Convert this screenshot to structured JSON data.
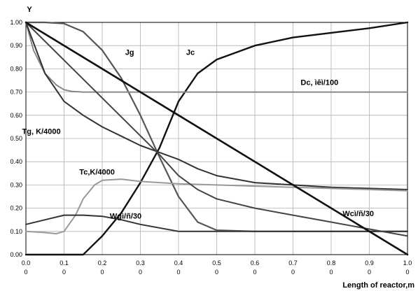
{
  "chart_data": {
    "type": "line",
    "title": "",
    "xlabel": "Length of reactor,m",
    "ylabel": "Y",
    "xlim": [
      0,
      1.0
    ],
    "ylim": [
      0,
      1.0
    ],
    "grid": true,
    "legend": "none",
    "x_ticks": [
      {
        "value": 0.0,
        "top": "0.0",
        "bottom": "0"
      },
      {
        "value": 0.1,
        "top": "0.1",
        "bottom": "0"
      },
      {
        "value": 0.2,
        "top": "0.2",
        "bottom": "0"
      },
      {
        "value": 0.3,
        "top": "0.3",
        "bottom": "0"
      },
      {
        "value": 0.4,
        "top": "0.4",
        "bottom": "0"
      },
      {
        "value": 0.5,
        "top": "0.5",
        "bottom": "0"
      },
      {
        "value": 0.6,
        "top": "0.6",
        "bottom": "0"
      },
      {
        "value": 0.7,
        "top": "0.7",
        "bottom": "0"
      },
      {
        "value": 0.8,
        "top": "0.8",
        "bottom": "0"
      },
      {
        "value": 0.9,
        "top": "0.9",
        "bottom": "0"
      },
      {
        "value": 1.0,
        "top": "1.0",
        "bottom": "0"
      }
    ],
    "y_ticks": [
      "0.00",
      "0.10",
      "0.20",
      "0.30",
      "0.40",
      "0.50",
      "0.60",
      "0.70",
      "0.80",
      "0.90",
      "1.00"
    ],
    "series": [
      {
        "name": "Jg",
        "color": "#555555",
        "width": 2.2,
        "x": [
          0,
          0.05,
          0.1,
          0.15,
          0.2,
          0.25,
          0.3,
          0.35,
          0.4,
          0.45,
          0.5,
          0.6,
          0.7,
          0.8,
          0.9,
          1.0
        ],
        "y": [
          1.0,
          1.0,
          0.995,
          0.96,
          0.88,
          0.76,
          0.6,
          0.42,
          0.25,
          0.14,
          0.105,
          0.1,
          0.1,
          0.1,
          0.1,
          0.1
        ]
      },
      {
        "name": "Jc",
        "color": "#111111",
        "width": 2.4,
        "x": [
          0,
          0.1,
          0.15,
          0.2,
          0.25,
          0.3,
          0.35,
          0.4,
          0.45,
          0.5,
          0.6,
          0.7,
          0.8,
          0.9,
          1.0
        ],
        "y": [
          0,
          0,
          0,
          0.08,
          0.18,
          0.31,
          0.46,
          0.66,
          0.78,
          0.84,
          0.9,
          0.935,
          0.955,
          0.975,
          1.0
        ]
      },
      {
        "name": "Dc, ìêì/100",
        "color": "#888888",
        "width": 2.0,
        "x": [
          0,
          0.02,
          0.05,
          0.08,
          0.1,
          0.12,
          0.15,
          0.2,
          0.4,
          0.6,
          0.8,
          1.0
        ],
        "y": [
          1.0,
          0.88,
          0.78,
          0.73,
          0.71,
          0.703,
          0.7,
          0.7,
          0.7,
          0.7,
          0.7,
          0.7
        ]
      },
      {
        "name": "Tg, K/4000",
        "color": "#333333",
        "width": 2.0,
        "x": [
          0,
          0.05,
          0.1,
          0.15,
          0.2,
          0.25,
          0.3,
          0.35,
          0.4,
          0.45,
          0.5,
          0.6,
          0.7,
          0.8,
          0.9,
          1.0
        ],
        "y": [
          1.0,
          0.78,
          0.66,
          0.6,
          0.55,
          0.51,
          0.47,
          0.44,
          0.41,
          0.37,
          0.34,
          0.31,
          0.3,
          0.29,
          0.285,
          0.28
        ]
      },
      {
        "name": "Tc,K/4000",
        "color": "#999999",
        "width": 2.0,
        "x": [
          0,
          0.05,
          0.08,
          0.1,
          0.13,
          0.15,
          0.18,
          0.2,
          0.25,
          0.3,
          0.4,
          0.5,
          0.6,
          0.7,
          0.8,
          0.9,
          1.0
        ],
        "y": [
          0.1,
          0.095,
          0.09,
          0.1,
          0.17,
          0.24,
          0.3,
          0.32,
          0.325,
          0.315,
          0.305,
          0.3,
          0.295,
          0.29,
          0.285,
          0.28,
          0.275
        ]
      },
      {
        "name": "Wgì/ñ/30",
        "color": "#333333",
        "width": 2.0,
        "x": [
          0,
          0.05,
          0.1,
          0.15,
          0.2,
          0.25,
          0.3,
          0.35,
          0.4,
          0.45,
          0.6,
          0.8,
          1.0
        ],
        "y": [
          0.13,
          0.15,
          0.17,
          0.17,
          0.165,
          0.15,
          0.13,
          0.115,
          0.1,
          0.1,
          0.1,
          0.1,
          0.1
        ]
      },
      {
        "name": "Wcì/ñ/30",
        "color": "#444444",
        "width": 2.0,
        "x": [
          0,
          0.35,
          0.4,
          0.45,
          0.5,
          0.6,
          0.7,
          0.8,
          0.9,
          1.0
        ],
        "y": [
          1.0,
          0.43,
          0.34,
          0.28,
          0.24,
          0.2,
          0.17,
          0.14,
          0.11,
          0.08
        ]
      },
      {
        "name": "",
        "color": "#111111",
        "width": 2.6,
        "x": [
          0,
          1.0
        ],
        "y": [
          1.0,
          0.0
        ]
      }
    ],
    "annotations": [
      {
        "text": "Jg",
        "x": 0.26,
        "y": 0.86
      },
      {
        "text": "Jc",
        "x": 0.42,
        "y": 0.86
      },
      {
        "text": "Dc, ìêì/100",
        "x": 0.72,
        "y": 0.73
      },
      {
        "text": "Tg, K/4000",
        "x": -0.01,
        "y": 0.52
      },
      {
        "text": "Tc,K/4000",
        "x": 0.14,
        "y": 0.345
      },
      {
        "text": "Wgì/ñ/30",
        "x": 0.22,
        "y": 0.155
      },
      {
        "text": "Wcì/ñ/30",
        "x": 0.83,
        "y": 0.165
      }
    ]
  }
}
